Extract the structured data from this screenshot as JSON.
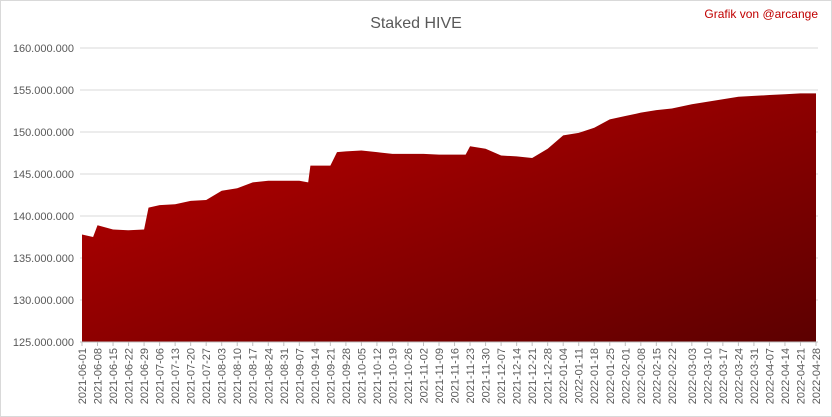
{
  "chart_data": {
    "type": "area",
    "title": "Staked HIVE",
    "annotation": "Grafik von @arcange",
    "x": [
      "2021-06-01",
      "2021-06-06",
      "2021-06-08",
      "2021-06-15",
      "2021-06-22",
      "2021-06-29",
      "2021-07-01",
      "2021-07-06",
      "2021-07-13",
      "2021-07-20",
      "2021-07-27",
      "2021-08-03",
      "2021-08-10",
      "2021-08-17",
      "2021-08-24",
      "2021-08-31",
      "2021-09-07",
      "2021-09-11",
      "2021-09-12",
      "2021-09-21",
      "2021-09-24",
      "2021-09-28",
      "2021-10-05",
      "2021-10-12",
      "2021-10-19",
      "2021-10-26",
      "2021-11-02",
      "2021-11-09",
      "2021-11-16",
      "2021-11-21",
      "2021-11-23",
      "2021-11-30",
      "2021-12-07",
      "2021-12-14",
      "2021-12-21",
      "2021-12-28",
      "2022-01-04",
      "2022-01-11",
      "2022-01-18",
      "2022-01-25",
      "2022-02-01",
      "2022-02-08",
      "2022-02-15",
      "2022-02-22",
      "2022-03-03",
      "2022-03-10",
      "2022-03-17",
      "2022-03-24",
      "2022-03-31",
      "2022-04-07",
      "2022-04-14",
      "2022-04-21",
      "2022-04-28"
    ],
    "values": [
      137800000,
      137500000,
      138900000,
      138400000,
      138300000,
      138400000,
      141000000,
      141300000,
      141400000,
      141800000,
      141900000,
      143000000,
      143300000,
      144000000,
      144200000,
      144200000,
      144200000,
      144000000,
      146000000,
      146000000,
      147600000,
      147700000,
      147800000,
      147600000,
      147400000,
      147400000,
      147400000,
      147300000,
      147300000,
      147300000,
      148300000,
      148000000,
      147200000,
      147100000,
      146900000,
      148000000,
      149600000,
      149900000,
      150500000,
      151500000,
      151900000,
      152300000,
      152600000,
      152800000,
      153300000,
      153600000,
      153900000,
      154200000,
      154300000,
      154400000,
      154500000,
      154600000,
      154600000
    ],
    "color": "#c00000",
    "color_end": "#5c0000",
    "xlim": [
      "2021-06-01",
      "2022-04-28"
    ],
    "xticks": [
      "2021-06-01",
      "2021-06-08",
      "2021-06-15",
      "2021-06-22",
      "2021-06-29",
      "2021-07-06",
      "2021-07-13",
      "2021-07-20",
      "2021-07-27",
      "2021-08-03",
      "2021-08-10",
      "2021-08-17",
      "2021-08-24",
      "2021-08-31",
      "2021-09-07",
      "2021-09-14",
      "2021-09-21",
      "2021-09-28",
      "2021-10-05",
      "2021-10-12",
      "2021-10-19",
      "2021-10-26",
      "2021-11-02",
      "2021-11-09",
      "2021-11-16",
      "2021-11-23",
      "2021-11-30",
      "2021-12-07",
      "2021-12-14",
      "2021-12-21",
      "2021-12-28",
      "2022-01-04",
      "2022-01-11",
      "2022-01-18",
      "2022-01-25",
      "2022-02-01",
      "2022-02-08",
      "2022-02-15",
      "2022-02-22",
      "2022-03-03",
      "2022-03-10",
      "2022-03-17",
      "2022-03-24",
      "2022-03-31",
      "2022-04-07",
      "2022-04-14",
      "2022-04-21",
      "2022-04-28"
    ],
    "ylim": [
      125000000,
      160000000
    ],
    "yticks": [
      {
        "value": 125000000,
        "label": "125.000.000"
      },
      {
        "value": 130000000,
        "label": "130.000.000"
      },
      {
        "value": 135000000,
        "label": "135.000.000"
      },
      {
        "value": 140000000,
        "label": "140.000.000"
      },
      {
        "value": 145000000,
        "label": "145.000.000"
      },
      {
        "value": 150000000,
        "label": "150.000.000"
      },
      {
        "value": 155000000,
        "label": "155.000.000"
      },
      {
        "value": 160000000,
        "label": "160.000.000"
      }
    ],
    "grid": true
  }
}
